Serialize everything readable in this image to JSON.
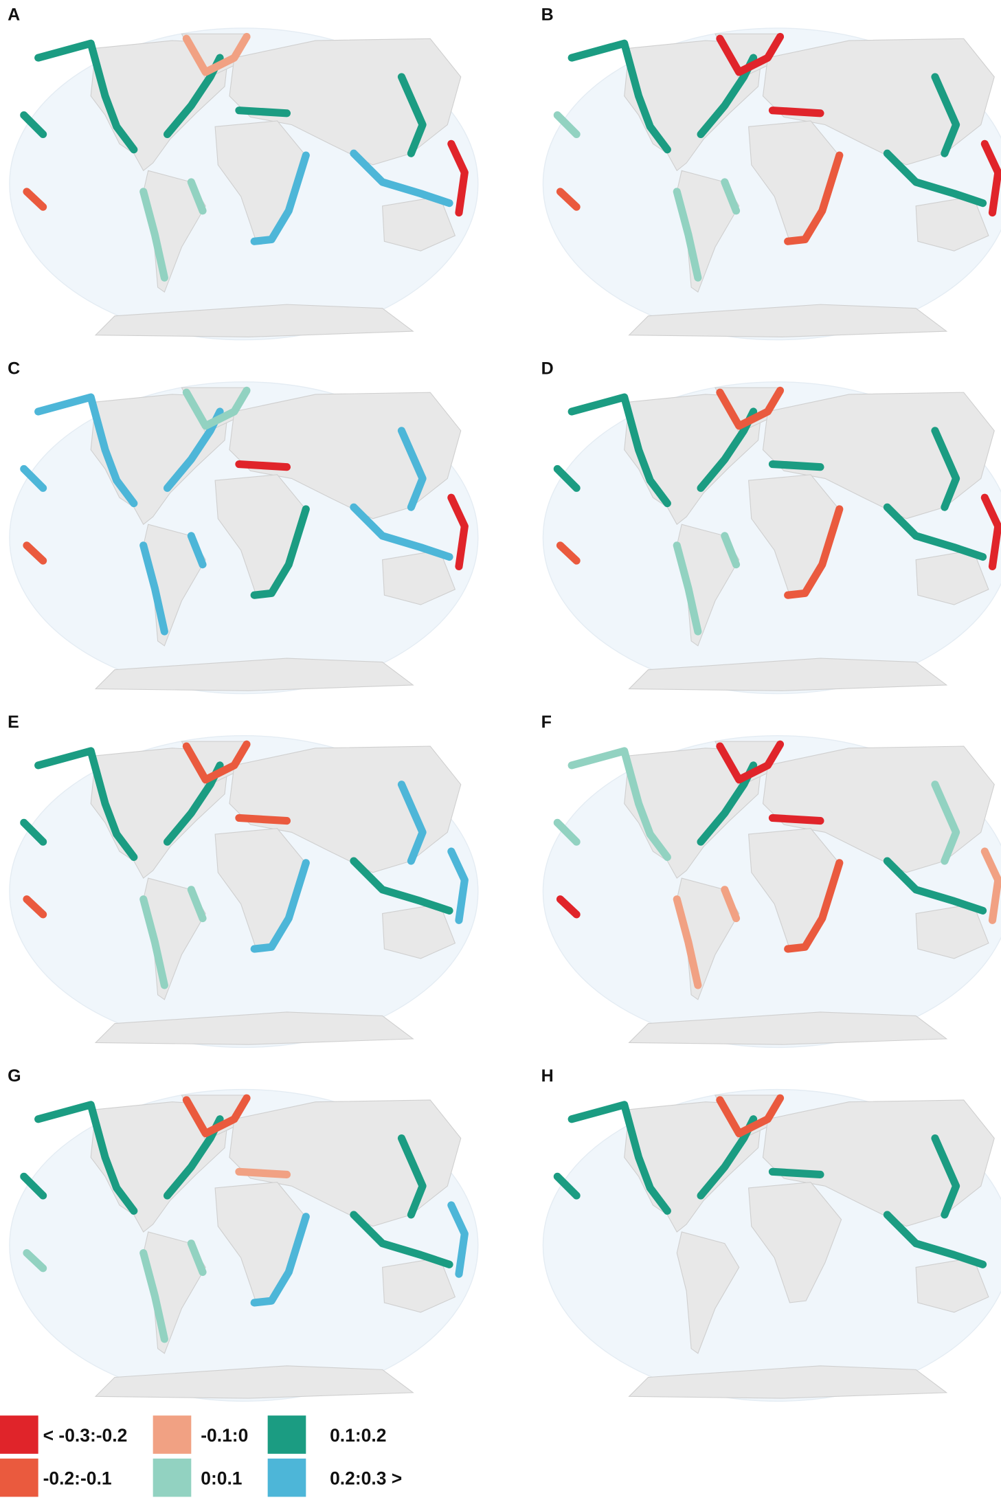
{
  "panels": [
    {
      "label": "A"
    },
    {
      "label": "B"
    },
    {
      "label": "C"
    },
    {
      "label": "D"
    },
    {
      "label": "E"
    },
    {
      "label": "F"
    },
    {
      "label": "G"
    },
    {
      "label": "H"
    }
  ],
  "legend": [
    {
      "label": "< -0.3:-0.2",
      "color": "#e0242a"
    },
    {
      "label": "-0.2:-0.1",
      "color": "#ea5a3e"
    },
    {
      "label": "-0.1:0",
      "color": "#f1a183"
    },
    {
      "label": "0:0.1",
      "color": "#92d2c1"
    },
    {
      "label": "0.1:0.2",
      "color": "#1b9c82"
    },
    {
      "label": "0.2:0.3 >",
      "color": "#4db6d8"
    }
  ]
}
